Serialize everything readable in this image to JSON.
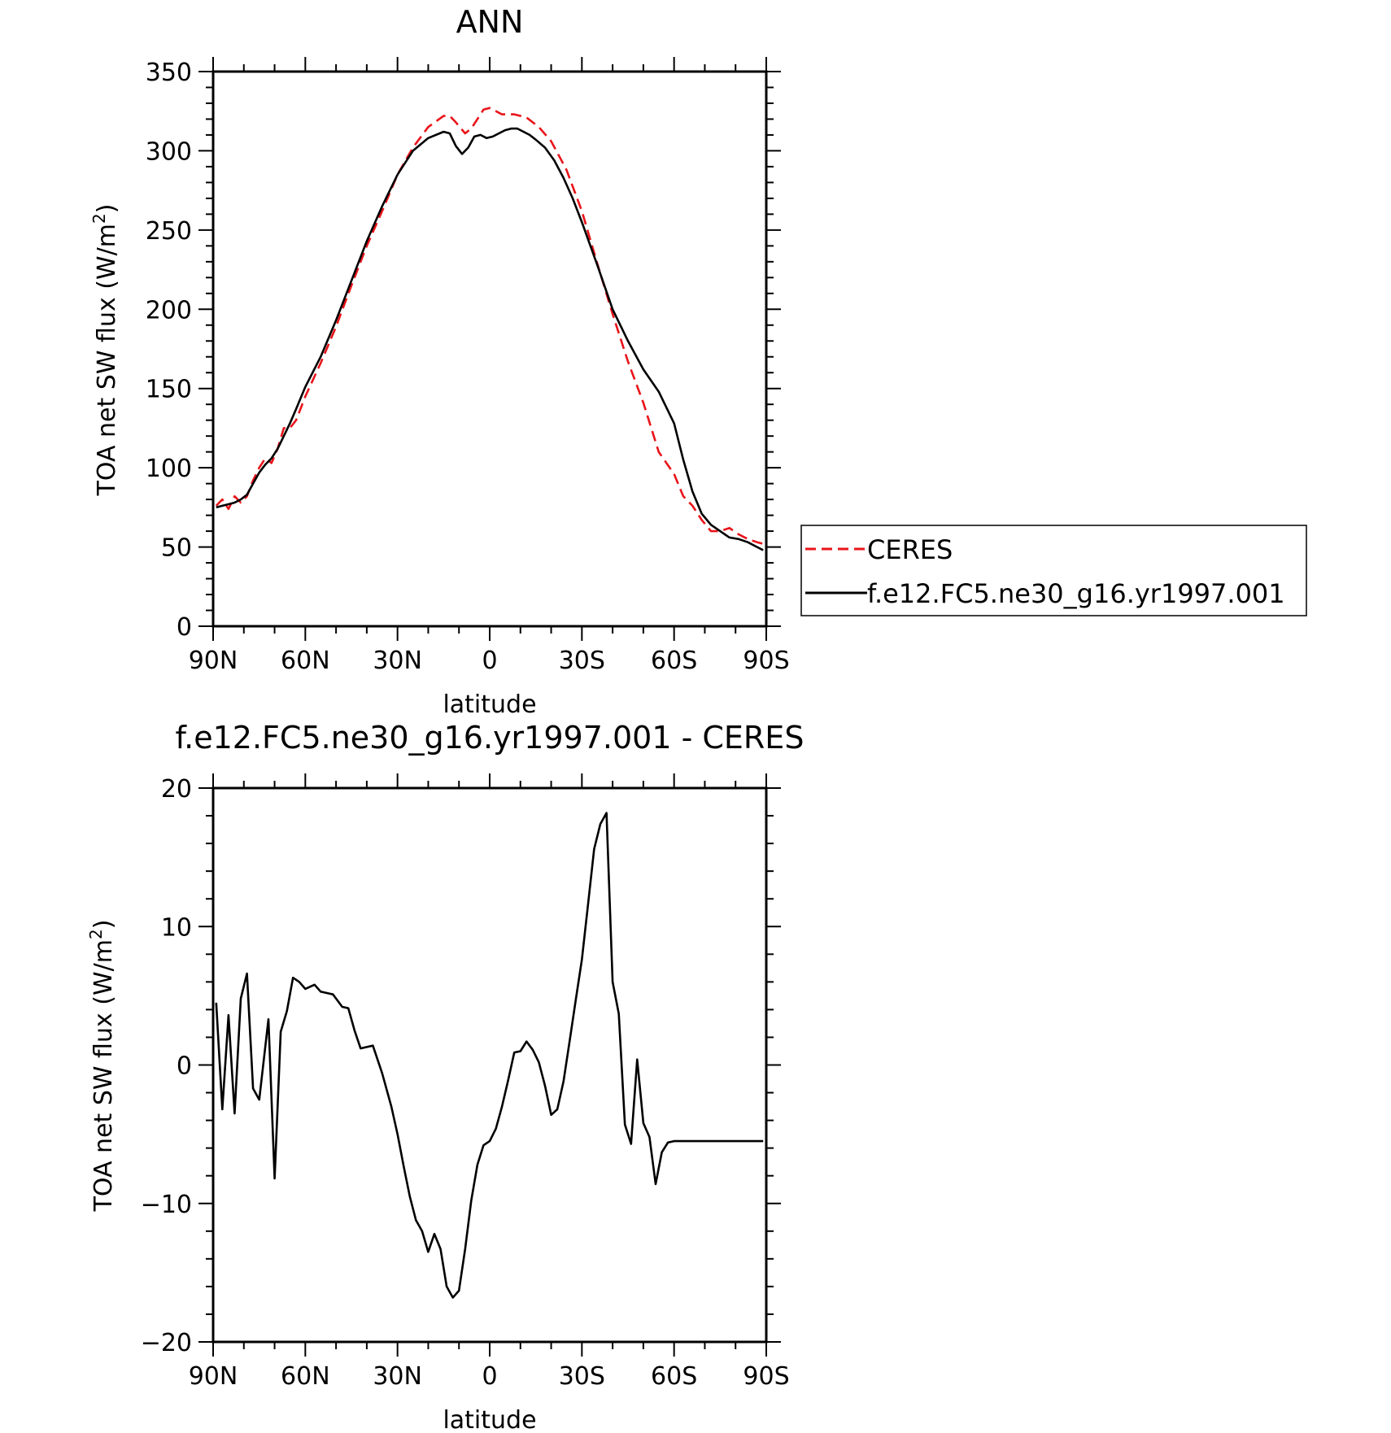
{
  "chart_data": [
    {
      "type": "line",
      "title": "ANN",
      "xlabel": "latitude",
      "ylabel": "TOA net SW flux (W/m",
      "ylabel_sup": "2",
      "ylabel_end": ")",
      "x_tick_values": [
        90,
        60,
        30,
        0,
        -30,
        -60,
        -90
      ],
      "x_tick_labels": [
        "90N",
        "60N",
        "30N",
        "0",
        "30S",
        "60S",
        "90S"
      ],
      "xlim": [
        90,
        -90
      ],
      "ylim": [
        0,
        350
      ],
      "y_ticks": [
        0,
        50,
        100,
        150,
        200,
        250,
        300,
        350
      ],
      "grid": false,
      "legend_position": "right",
      "series": [
        {
          "name": "CERES",
          "color": "#e8141a",
          "style": "dashed",
          "x": [
            89,
            87,
            85,
            83,
            81,
            79,
            77,
            75,
            73,
            71,
            69,
            67,
            65,
            63,
            60,
            55,
            50,
            45,
            40,
            35,
            30,
            25,
            20,
            15,
            13,
            11,
            8,
            6,
            4,
            2,
            0,
            -2,
            -4,
            -8,
            -12,
            -16,
            -20,
            -25,
            -30,
            -35,
            -40,
            -45,
            -50,
            -55,
            -60,
            -63,
            -66,
            -69,
            -72,
            -75,
            -78,
            -81,
            -84,
            -87,
            -89
          ],
          "y": [
            76,
            80,
            74,
            82,
            78,
            82,
            92,
            100,
            106,
            103,
            112,
            125,
            125,
            130,
            145,
            166,
            189,
            215,
            240,
            262,
            285,
            302,
            315,
            322,
            322,
            318,
            311,
            314,
            320,
            326,
            327,
            325,
            323,
            323,
            321,
            315,
            306,
            288,
            262,
            229,
            197,
            167,
            141,
            110,
            96,
            82,
            76,
            67,
            60,
            60,
            62,
            58,
            55,
            53,
            52
          ]
        },
        {
          "name": "f.e12.FC5.ne30_g16.yr1997.001",
          "color": "#000000",
          "style": "solid",
          "x": [
            89,
            87,
            85,
            83,
            81,
            79,
            77,
            75,
            73,
            71,
            69,
            67,
            65,
            63,
            60,
            55,
            50,
            45,
            40,
            35,
            30,
            25,
            20,
            15,
            13,
            11,
            9,
            7,
            5,
            3,
            1,
            -1,
            -3,
            -5,
            -7,
            -9,
            -11,
            -13,
            -15,
            -18,
            -21,
            -24,
            -27,
            -30,
            -35,
            -40,
            -45,
            -50,
            -55,
            -60,
            -63,
            -66,
            -69,
            -72,
            -75,
            -78,
            -81,
            -84,
            -87,
            -89
          ],
          "y": [
            75,
            76,
            77,
            78,
            80,
            83,
            90,
            97,
            102,
            106,
            112,
            120,
            128,
            137,
            151,
            170,
            193,
            218,
            243,
            265,
            285,
            300,
            308,
            312,
            311,
            303,
            298,
            302,
            309,
            310,
            308,
            309,
            311,
            313,
            314,
            314,
            312,
            310,
            307,
            302,
            294,
            283,
            270,
            255,
            228,
            200,
            180,
            162,
            148,
            128,
            105,
            85,
            71,
            64,
            60,
            56,
            55,
            53,
            50,
            48
          ]
        }
      ]
    },
    {
      "type": "line",
      "title": "f.e12.FC5.ne30_g16.yr1997.001 - CERES",
      "xlabel": "latitude",
      "ylabel": "TOA net SW flux (W/m",
      "ylabel_sup": "2",
      "ylabel_end": ")",
      "x_tick_values": [
        90,
        60,
        30,
        0,
        -30,
        -60,
        -90
      ],
      "x_tick_labels": [
        "90N",
        "60N",
        "30N",
        "0",
        "30S",
        "60S",
        "90S"
      ],
      "xlim": [
        90,
        -90
      ],
      "ylim": [
        -20,
        20
      ],
      "y_ticks": [
        -20,
        -10,
        0,
        10,
        20
      ],
      "y_tick_labels": [
        "−20",
        "−10",
        "0",
        "10",
        "20"
      ],
      "grid": false,
      "series": [
        {
          "color": "#000000",
          "style": "solid",
          "x": [
            89,
            87,
            85,
            83,
            81,
            79,
            77,
            75,
            72,
            70,
            68,
            66,
            64,
            62,
            60,
            57,
            55,
            53,
            51,
            48,
            46,
            44,
            42,
            40,
            38,
            35,
            32,
            30,
            28,
            26,
            24,
            22,
            20,
            18,
            16,
            14,
            12,
            10,
            8,
            6,
            4,
            2,
            0,
            -2,
            -4,
            -6,
            -8,
            -10,
            -12,
            -14,
            -16,
            -18,
            -20,
            -22,
            -24,
            -26,
            -28,
            -30,
            -32,
            -34,
            -36,
            -38,
            -40,
            -42,
            -44,
            -46,
            -48,
            -50,
            -52,
            -54,
            -56,
            -58,
            -60,
            -62,
            -64,
            -66,
            -68,
            -70,
            -72,
            -74,
            -76,
            -78,
            -80,
            -82,
            -84,
            -86,
            -88,
            -89
          ],
          "y": [
            4.5,
            -3.2,
            3.6,
            -3.5,
            4.8,
            6.6,
            -1.7,
            -2.5,
            3.3,
            -8.2,
            2.4,
            3.9,
            6.3,
            6.0,
            5.5,
            5.8,
            5.3,
            5.2,
            5.1,
            4.2,
            4.1,
            2.5,
            1.2,
            1.3,
            1.4,
            -0.6,
            -3.0,
            -5.0,
            -7.3,
            -9.5,
            -11.2,
            -12.0,
            -13.5,
            -12.2,
            -13.3,
            -16.0,
            -16.8,
            -16.3,
            -13.3,
            -9.8,
            -7.2,
            -5.8,
            -5.5,
            -4.6,
            -3.0,
            -1.1,
            0.9,
            1.0,
            1.7,
            1.1,
            0.2,
            -1.5,
            -3.6,
            -3.2,
            -1.2,
            1.7,
            4.7,
            7.6,
            11.6,
            15.6,
            17.4,
            18.2,
            6.0,
            3.7,
            -4.3,
            -5.7,
            0.4,
            -4.2,
            -5.2,
            -8.6,
            -6.3,
            -5.6,
            -5.5,
            -5.5,
            -5.5,
            -5.5,
            -5.5,
            -5.5,
            -5.5,
            -5.5,
            -5.5,
            -5.5,
            -5.5,
            -5.5,
            -5.5,
            -5.5,
            -5.5,
            -5.5
          ]
        }
      ]
    }
  ]
}
